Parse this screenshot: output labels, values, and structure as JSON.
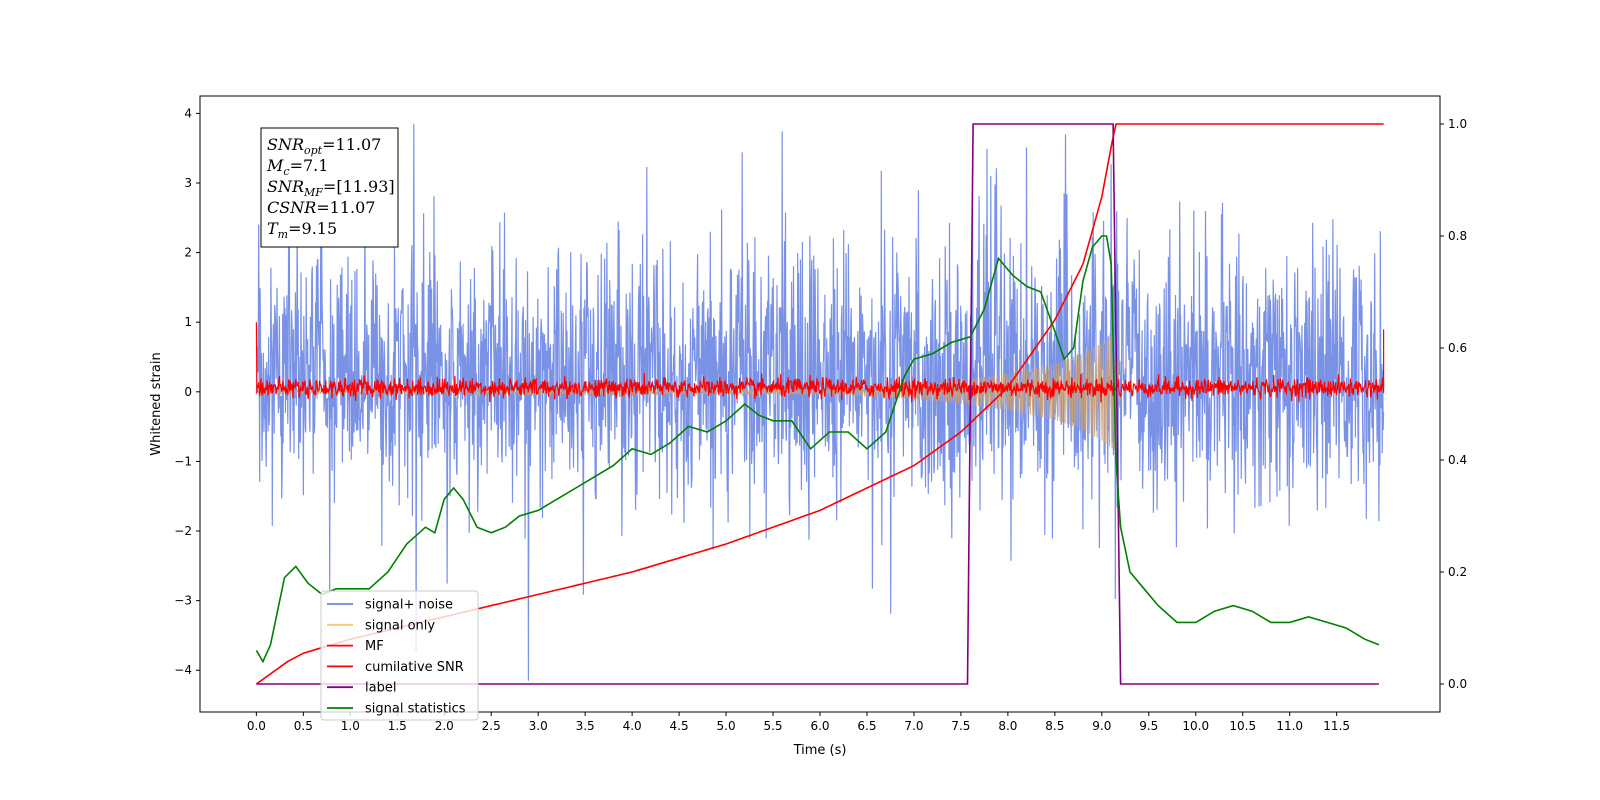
{
  "chart_data": {
    "type": "line",
    "title": "",
    "xlabel": "Time (s)",
    "ylabel": "Whitened strain",
    "xlim": [
      -0.6,
      12.6
    ],
    "ylim": [
      -4.6,
      4.25
    ],
    "y2lim": [
      -0.05,
      1.05
    ],
    "grid": false,
    "legend_position": "lower-left",
    "x_ticks": [
      "0.0",
      "0.5",
      "1.0",
      "1.5",
      "2.0",
      "2.5",
      "3.0",
      "3.5",
      "4.0",
      "4.5",
      "5.0",
      "5.5",
      "6.0",
      "6.5",
      "7.0",
      "7.5",
      "8.0",
      "8.5",
      "9.0",
      "9.5",
      "10.0",
      "10.5",
      "11.0",
      "11.5"
    ],
    "y_ticks": [
      "4",
      "3",
      "2",
      "1",
      "0",
      "−1",
      "−2",
      "−3",
      "−4"
    ],
    "y2_ticks": [
      "1.0",
      "0.8",
      "0.6",
      "0.4",
      "0.2",
      "0.0"
    ],
    "info_box": [
      {
        "base": "SNR",
        "sub": "opt",
        "rest": "=11.07"
      },
      {
        "base": "M",
        "sub": "c",
        "rest": "=7.1"
      },
      {
        "base": "SNR",
        "sub": "MF",
        "rest": "=[11.93]"
      },
      {
        "base": "CSNR",
        "sub": "",
        "rest": "=11.07"
      },
      {
        "base": "T",
        "sub": "m",
        "rest": "=9.15"
      }
    ],
    "series": [
      {
        "name": "signal+ noise",
        "color": "#6b86e3",
        "axis": "left",
        "description_points": {
          "x_range": [
            0.0,
            12.0
          ],
          "y_range": [
            -4.15,
            3.85
          ],
          "typical_band": [
            -1.9,
            2.0
          ]
        }
      },
      {
        "name": "signal only",
        "color": "#f5c97a",
        "axis": "left",
        "envelope": {
          "x": [
            0.0,
            6.0,
            7.0,
            7.5,
            8.0,
            8.5,
            8.8,
            9.0,
            9.1,
            9.15,
            9.2
          ],
          "amp": [
            0.02,
            0.04,
            0.1,
            0.17,
            0.26,
            0.4,
            0.55,
            0.7,
            0.8,
            0.85,
            0.0
          ]
        }
      },
      {
        "name": "MF",
        "color": "#ff0000",
        "axis": "left",
        "band": {
          "x_range": [
            0.0,
            12.0
          ],
          "y_range": [
            -0.15,
            0.3
          ],
          "start_value": 1.0,
          "end_value": 0.9
        }
      },
      {
        "name": "cumilative SNR",
        "color": "#ff0000",
        "axis": "right",
        "x": [
          0.0,
          0.05,
          0.5,
          1.0,
          2.0,
          3.0,
          4.0,
          5.0,
          6.0,
          6.5,
          7.0,
          7.5,
          8.0,
          8.5,
          8.8,
          9.0,
          9.1,
          9.15,
          12.0
        ],
        "values": [
          0.0,
          0.015,
          0.055,
          0.08,
          0.12,
          0.16,
          0.2,
          0.25,
          0.31,
          0.35,
          0.39,
          0.45,
          0.53,
          0.65,
          0.75,
          0.87,
          0.96,
          1.0,
          1.0
        ]
      },
      {
        "name": "label",
        "color": "#800080",
        "axis": "right",
        "x": [
          0.0,
          7.57,
          7.63,
          9.12,
          9.2,
          11.95
        ],
        "values": [
          0.0,
          0.0,
          1.0,
          1.0,
          0.0,
          0.0
        ]
      },
      {
        "name": "signal statistics",
        "color": "#008000",
        "axis": "right",
        "x": [
          0.0,
          0.07,
          0.15,
          0.3,
          0.42,
          0.55,
          0.7,
          0.85,
          1.0,
          1.2,
          1.4,
          1.6,
          1.8,
          1.9,
          2.0,
          2.1,
          2.2,
          2.35,
          2.5,
          2.65,
          2.8,
          3.0,
          3.2,
          3.4,
          3.6,
          3.8,
          4.0,
          4.2,
          4.4,
          4.6,
          4.8,
          5.0,
          5.2,
          5.35,
          5.5,
          5.7,
          5.9,
          6.1,
          6.3,
          6.5,
          6.7,
          6.9,
          7.0,
          7.2,
          7.4,
          7.6,
          7.75,
          7.9,
          8.05,
          8.2,
          8.35,
          8.5,
          8.6,
          8.7,
          8.8,
          8.9,
          9.0,
          9.05,
          9.1,
          9.15,
          9.2,
          9.3,
          9.45,
          9.6,
          9.8,
          10.0,
          10.2,
          10.4,
          10.6,
          10.8,
          11.0,
          11.2,
          11.4,
          11.6,
          11.8,
          11.95
        ],
        "values": [
          0.06,
          0.04,
          0.07,
          0.19,
          0.21,
          0.18,
          0.16,
          0.17,
          0.17,
          0.17,
          0.2,
          0.25,
          0.28,
          0.27,
          0.33,
          0.35,
          0.33,
          0.28,
          0.27,
          0.28,
          0.3,
          0.31,
          0.33,
          0.35,
          0.37,
          0.39,
          0.42,
          0.41,
          0.43,
          0.46,
          0.45,
          0.47,
          0.5,
          0.48,
          0.47,
          0.47,
          0.42,
          0.45,
          0.45,
          0.42,
          0.45,
          0.55,
          0.58,
          0.59,
          0.61,
          0.62,
          0.67,
          0.76,
          0.73,
          0.71,
          0.7,
          0.63,
          0.58,
          0.6,
          0.72,
          0.78,
          0.8,
          0.8,
          0.75,
          0.4,
          0.28,
          0.2,
          0.17,
          0.14,
          0.11,
          0.11,
          0.13,
          0.14,
          0.13,
          0.11,
          0.11,
          0.12,
          0.11,
          0.1,
          0.08,
          0.07
        ]
      }
    ]
  }
}
